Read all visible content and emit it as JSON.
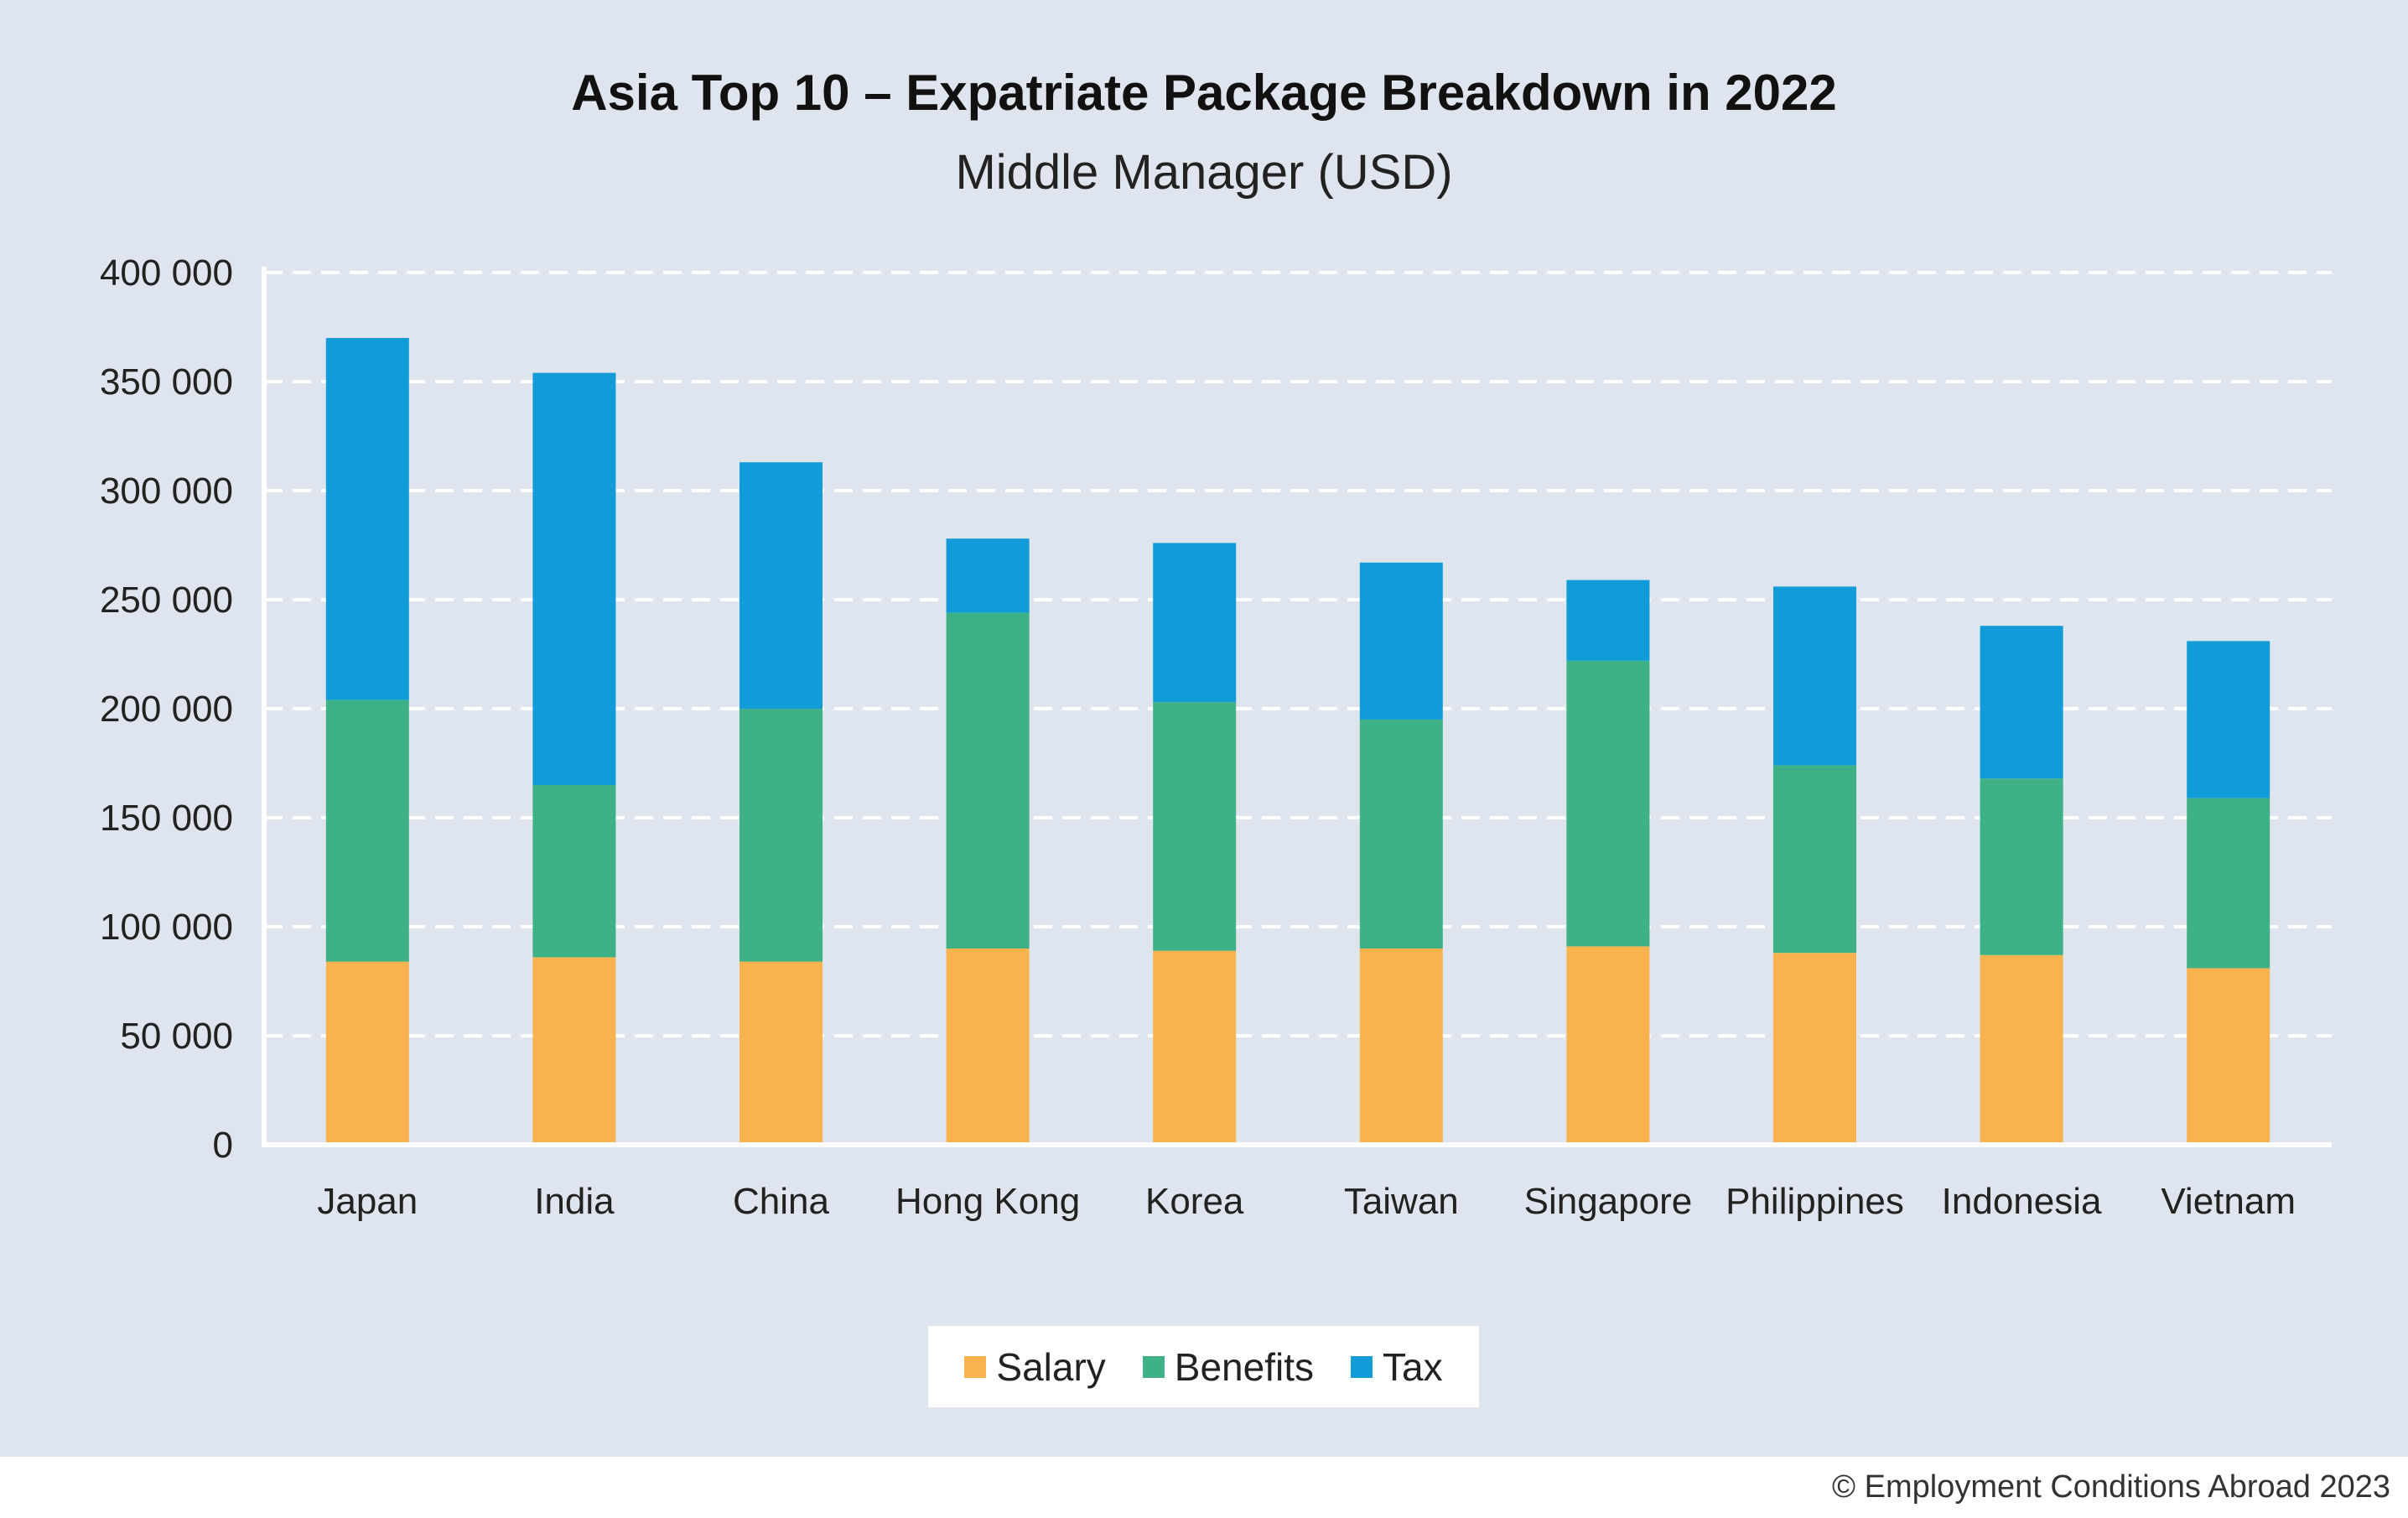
{
  "chart_data": {
    "type": "bar",
    "stacked": true,
    "title": "Asia Top 10 – Expatriate Package Breakdown in 2022",
    "subtitle": "Middle Manager (USD)",
    "categories": [
      "Japan",
      "India",
      "China",
      "Hong Kong",
      "Korea",
      "Taiwan",
      "Singapore",
      "Philippines",
      "Indonesia",
      "Vietnam"
    ],
    "series": [
      {
        "name": "Salary",
        "color": "#f8b34f",
        "values": [
          84000,
          86000,
          84000,
          90000,
          89000,
          90000,
          91000,
          88000,
          87000,
          81000
        ]
      },
      {
        "name": "Benefits",
        "color": "#3eb186",
        "values": [
          120000,
          79000,
          116000,
          154000,
          114000,
          105000,
          131000,
          86000,
          81000,
          78000
        ]
      },
      {
        "name": "Tax",
        "color": "#119bd8",
        "values": [
          166000,
          189000,
          113000,
          34000,
          73000,
          72000,
          37000,
          82000,
          70000,
          72000
        ]
      }
    ],
    "ylim": [
      0,
      400000
    ],
    "yticks": [
      "0",
      "50 000",
      "100 000",
      "150 000",
      "200 000",
      "250 000",
      "300 000",
      "350 000",
      "400 000"
    ],
    "grid": true,
    "legend_position": "bottom",
    "xlabel": "",
    "ylabel": ""
  },
  "footer": "© Employment Conditions Abroad 2023"
}
